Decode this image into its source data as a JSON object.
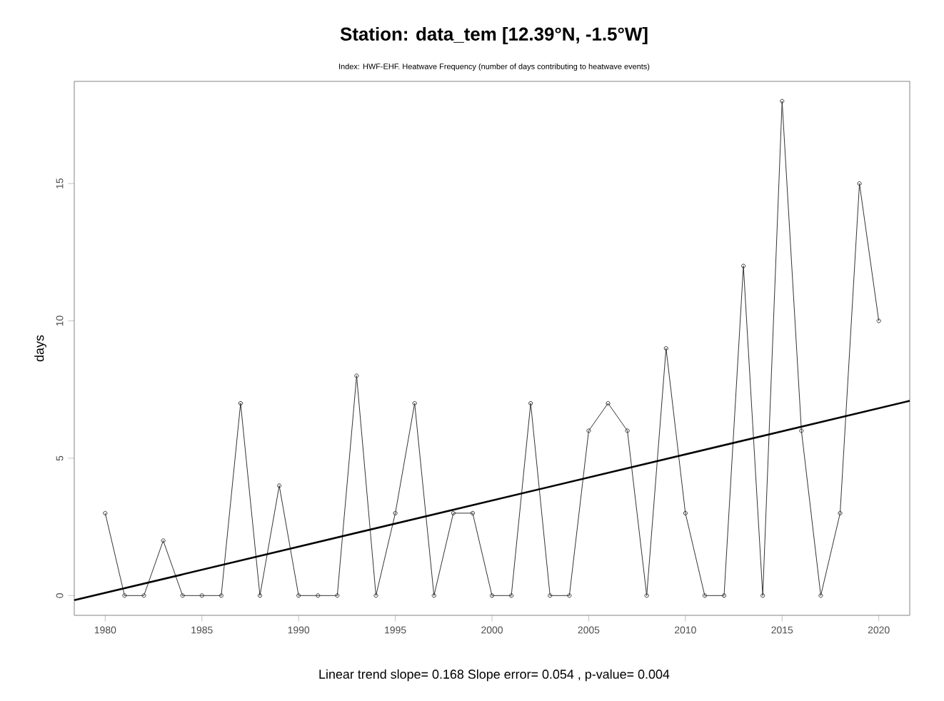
{
  "chart_data": {
    "type": "line",
    "title": "Station: data_tem [12.39°N, -1.5°W]",
    "subtitle": "Index: HWF-EHF. Heatwave Frequency (number of days contributing to heatwave events)",
    "ylabel": "days",
    "annotations": [
      "Linear trend slope= 0.168    Slope error= 0.054 ,   p-value= 0.004"
    ],
    "x": [
      1980,
      1981,
      1982,
      1983,
      1984,
      1985,
      1986,
      1987,
      1988,
      1989,
      1990,
      1991,
      1992,
      1993,
      1994,
      1995,
      1996,
      1997,
      1998,
      1999,
      2000,
      2001,
      2002,
      2003,
      2004,
      2005,
      2006,
      2007,
      2008,
      2009,
      2010,
      2011,
      2012,
      2013,
      2014,
      2015,
      2016,
      2017,
      2018,
      2019,
      2020
    ],
    "series": [
      {
        "color": "#333333",
        "marker": "circle",
        "values": [
          3,
          0,
          0,
          2,
          0,
          0,
          0,
          7,
          0,
          4,
          0,
          0,
          0,
          8,
          0,
          3,
          7,
          0,
          3,
          3,
          0,
          0,
          7,
          0,
          0,
          6,
          7,
          6,
          0,
          9,
          3,
          0,
          0,
          12,
          0,
          18,
          6,
          0,
          3,
          15,
          10
        ]
      },
      {
        "type": "line",
        "color": "#000000",
        "marker": "none",
        "x": [
          1978.4,
          2021.6
        ],
        "values": [
          -0.17,
          7.09
        ]
      }
    ],
    "xlim": [
      1978.4,
      2021.6
    ],
    "ylim": [
      -0.72,
      18.72
    ],
    "xticks": [
      1980,
      1985,
      1990,
      1995,
      2000,
      2005,
      2010,
      2015,
      2020
    ],
    "yticks": [
      0,
      5,
      10,
      15
    ]
  }
}
